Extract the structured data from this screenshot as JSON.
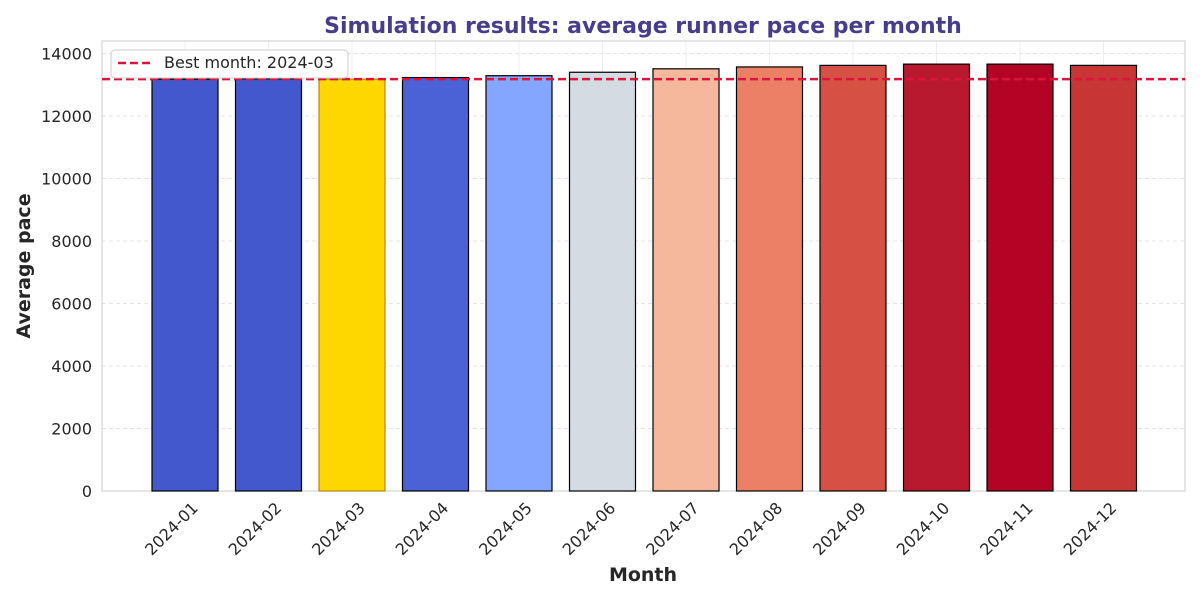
{
  "chart_data": {
    "type": "bar",
    "title": "Simulation results: average runner pace per month",
    "xlabel": "Month",
    "ylabel": "Average pace",
    "categories": [
      "2024-01",
      "2024-02",
      "2024-03",
      "2024-04",
      "2024-05",
      "2024-06",
      "2024-07",
      "2024-08",
      "2024-09",
      "2024-10",
      "2024-11",
      "2024-12"
    ],
    "values": [
      13180,
      13190,
      13180,
      13230,
      13290,
      13400,
      13510,
      13570,
      13620,
      13660,
      13660,
      13620
    ],
    "bar_colors": [
      "#4358cc",
      "#4358cc",
      "#ffd700",
      "#4a62d6",
      "#84a6fc",
      "#d5dbe2",
      "#f6b89c",
      "#ec8066",
      "#d45143",
      "#b9192e",
      "#b40426",
      "#c73534"
    ],
    "bar_edge_colors": [
      "#000000",
      "#000000",
      "#b8860b",
      "#000000",
      "#000000",
      "#000000",
      "#000000",
      "#000000",
      "#000000",
      "#000000",
      "#000000",
      "#000000"
    ],
    "ylim": [
      0,
      14400
    ],
    "yticks": [
      0,
      2000,
      4000,
      6000,
      8000,
      10000,
      12000,
      14000
    ],
    "reference_line": {
      "value": 13180,
      "label": "Best month: 2024-03",
      "color": "#dc143c",
      "style": "dashed"
    },
    "legend_position": "top-left",
    "grid": true,
    "title_color": "#483d8b"
  }
}
